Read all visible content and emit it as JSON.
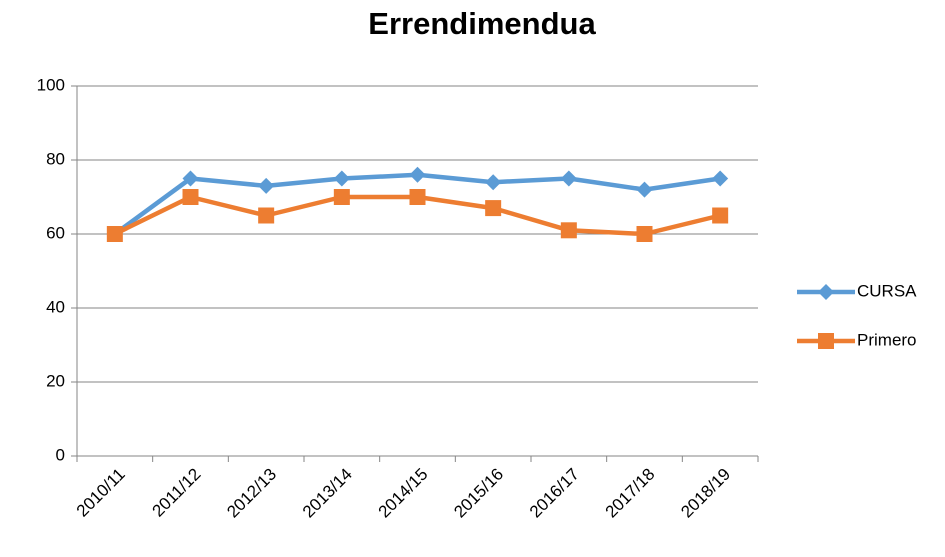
{
  "chart_data": {
    "type": "line",
    "title": "Errendimendua",
    "categories": [
      "2010/11",
      "2011/12",
      "2012/13",
      "2013/14",
      "2014/15",
      "2015/16",
      "2016/17",
      "2017/18",
      "2018/19"
    ],
    "series": [
      {
        "name": "CURSA",
        "color": "#5b9bd5",
        "marker": "diamond",
        "values": [
          60,
          75,
          73,
          75,
          76,
          74,
          75,
          72,
          75
        ]
      },
      {
        "name": "Primero",
        "color": "#ed7d31",
        "marker": "square",
        "values": [
          60,
          70,
          65,
          70,
          70,
          67,
          61,
          60,
          65
        ]
      }
    ],
    "ylim": [
      0,
      100
    ],
    "yticks": [
      0,
      20,
      40,
      60,
      80,
      100
    ],
    "grid": true,
    "legend": "right"
  }
}
